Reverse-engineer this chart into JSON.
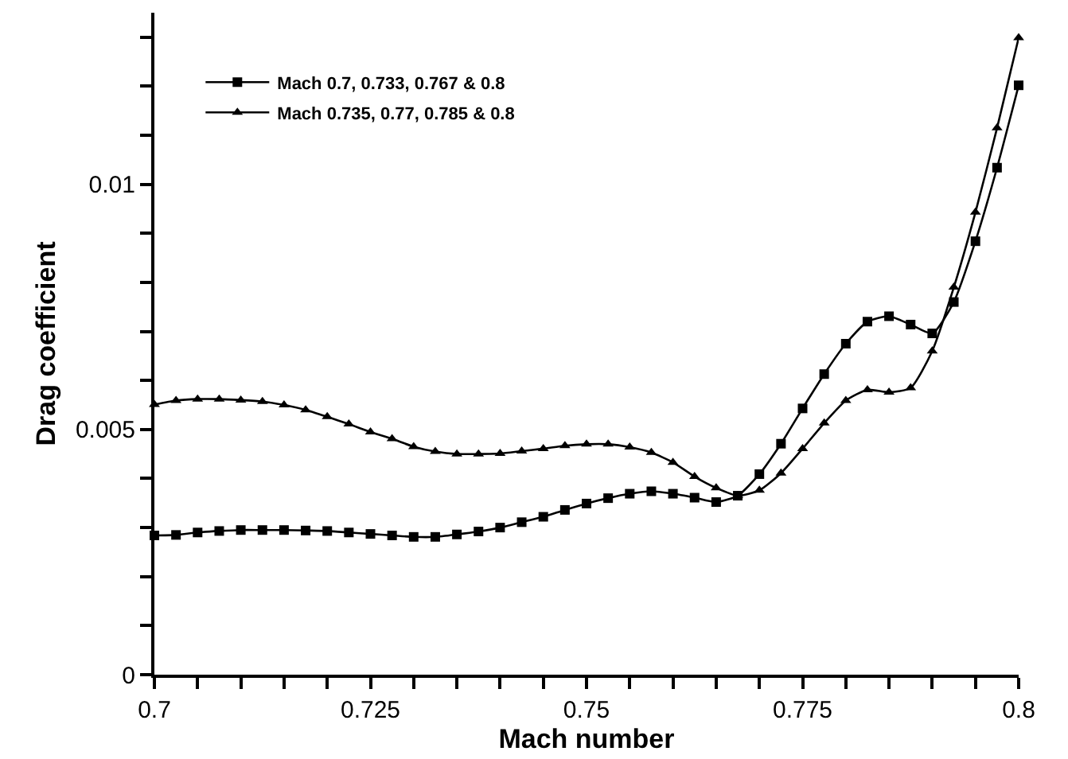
{
  "chart_data": {
    "type": "line",
    "xlabel": "Mach number",
    "ylabel": "Drag coefficient",
    "x": [
      0.7,
      0.7025,
      0.705,
      0.7075,
      0.71,
      0.7125,
      0.715,
      0.7175,
      0.72,
      0.7225,
      0.725,
      0.7275,
      0.73,
      0.7325,
      0.735,
      0.7375,
      0.74,
      0.7425,
      0.745,
      0.7475,
      0.75,
      0.7525,
      0.755,
      0.7575,
      0.76,
      0.7625,
      0.765,
      0.7675,
      0.77,
      0.7725,
      0.775,
      0.7775,
      0.78,
      0.7825,
      0.785,
      0.7875,
      0.79,
      0.7925,
      0.795,
      0.7975,
      0.8
    ],
    "series": [
      {
        "name": "Mach 0.7, 0.733, 0.767 & 0.8",
        "color": "#000000",
        "marker": "square",
        "values": [
          0.00284,
          0.00285,
          0.0029,
          0.00293,
          0.00295,
          0.00295,
          0.00295,
          0.00294,
          0.00293,
          0.0029,
          0.00287,
          0.00284,
          0.00281,
          0.00281,
          0.00286,
          0.00292,
          0.003,
          0.00311,
          0.00322,
          0.00336,
          0.00349,
          0.0036,
          0.00369,
          0.00374,
          0.00369,
          0.00361,
          0.00352,
          0.00365,
          0.00409,
          0.00471,
          0.00543,
          0.00613,
          0.00675,
          0.0072,
          0.00731,
          0.00714,
          0.00696,
          0.0076,
          0.00884,
          0.01034,
          0.01202
        ]
      },
      {
        "name": "Mach 0.735, 0.77, 0.785 & 0.8",
        "color": "#000000",
        "marker": "triangle",
        "values": [
          0.00551,
          0.00559,
          0.00562,
          0.00562,
          0.0056,
          0.00557,
          0.0055,
          0.0054,
          0.00526,
          0.00511,
          0.00495,
          0.00481,
          0.00465,
          0.00455,
          0.0045,
          0.0045,
          0.00451,
          0.00456,
          0.00461,
          0.00467,
          0.0047,
          0.0047,
          0.00464,
          0.00453,
          0.00433,
          0.00404,
          0.00381,
          0.00365,
          0.00376,
          0.00411,
          0.00461,
          0.00513,
          0.00559,
          0.00581,
          0.00576,
          0.00585,
          0.0066,
          0.0079,
          0.00943,
          0.01115,
          0.01299
        ]
      }
    ],
    "xlim": [
      0.7,
      0.8
    ],
    "xticks": [
      0.7,
      {
        "value": 0.705,
        "label": null
      },
      {
        "value": 0.71,
        "label": null
      },
      {
        "value": 0.715,
        "label": null
      },
      {
        "value": 0.72,
        "label": null
      },
      0.725,
      {
        "value": 0.73,
        "label": null
      },
      {
        "value": 0.735,
        "label": null
      },
      {
        "value": 0.74,
        "label": null
      },
      {
        "value": 0.745,
        "label": null
      },
      0.75,
      {
        "value": 0.755,
        "label": null
      },
      {
        "value": 0.76,
        "label": null
      },
      {
        "value": 0.765,
        "label": null
      },
      {
        "value": 0.77,
        "label": null
      },
      0.775,
      {
        "value": 0.78,
        "label": null
      },
      {
        "value": 0.785,
        "label": null
      },
      {
        "value": 0.79,
        "label": null
      },
      {
        "value": 0.795,
        "label": null
      },
      0.8
    ],
    "ylim": [
      0,
      0.0135
    ],
    "yticks": [
      0,
      {
        "value": 0.001,
        "label": null
      },
      {
        "value": 0.002,
        "label": null
      },
      {
        "value": 0.003,
        "label": null
      },
      {
        "value": 0.004,
        "label": null
      },
      0.005,
      {
        "value": 0.006,
        "label": null
      },
      {
        "value": 0.007,
        "label": null
      },
      {
        "value": 0.008,
        "label": null
      },
      {
        "value": 0.009,
        "label": null
      },
      0.01,
      {
        "value": 0.011,
        "label": null
      },
      {
        "value": 0.012,
        "label": null
      },
      {
        "value": 0.013,
        "label": null
      }
    ],
    "legend": "top left",
    "line_style": "solid"
  }
}
